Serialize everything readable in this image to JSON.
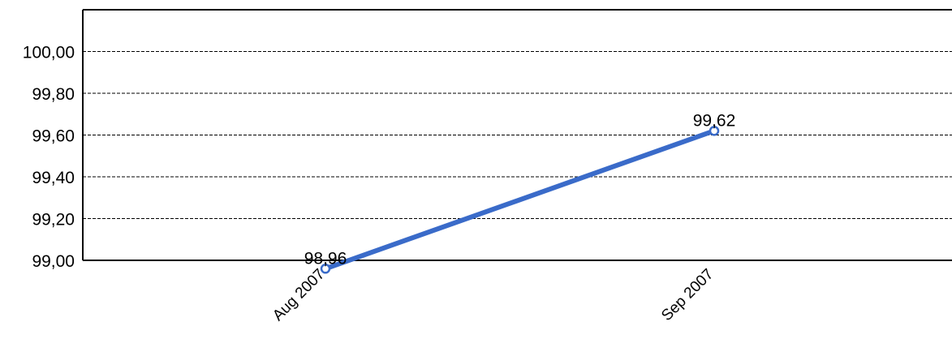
{
  "chart_data": {
    "type": "line",
    "title": "",
    "xlabel": "",
    "ylabel": "",
    "categories": [
      "Aug 2007",
      "Sep 2007"
    ],
    "series": [
      {
        "values": [
          98.96,
          99.62
        ],
        "data_labels": [
          "98,96",
          "99,62"
        ],
        "color": "#3a6bc9"
      }
    ],
    "ylim": [
      99.0,
      100.2
    ],
    "y_ticks": [
      {
        "value": 99.0,
        "label": "99,00"
      },
      {
        "value": 99.2,
        "label": "99,20"
      },
      {
        "value": 99.4,
        "label": "99,40"
      },
      {
        "value": 99.6,
        "label": "99,60"
      },
      {
        "value": 99.8,
        "label": "99,80"
      },
      {
        "value": 100.0,
        "label": "100,00"
      }
    ],
    "grid": "horizontal-dashed",
    "legend": "none",
    "colors": {
      "line": "#3a6bc9",
      "axis": "#000000",
      "grid": "#000000"
    }
  }
}
